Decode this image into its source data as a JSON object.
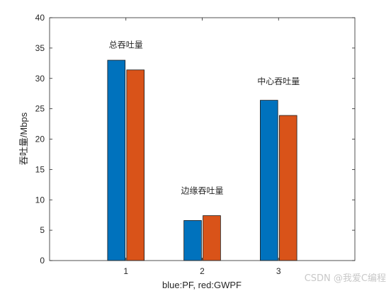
{
  "chart_data": {
    "type": "bar",
    "categories": [
      "1",
      "2",
      "3"
    ],
    "series": [
      {
        "values": [
          33.0,
          6.6,
          26.4
        ],
        "color": "#0072BD"
      },
      {
        "values": [
          31.4,
          7.4,
          23.9
        ],
        "color": "#D95319"
      }
    ],
    "xlabel": "blue:PF,  red:GWPF",
    "ylabel": "吞吐量/Mbps",
    "ylim": [
      0,
      40
    ],
    "yticks": [
      "0",
      "5",
      "10",
      "15",
      "20",
      "25",
      "30",
      "35",
      "40"
    ],
    "annotations": [
      {
        "text": "总吞吐量",
        "x": 1,
        "y": 35.5
      },
      {
        "text": "边缘吞吐量",
        "x": 2,
        "y": 11.5
      },
      {
        "text": "中心吞吐量",
        "x": 3,
        "y": 29.5
      }
    ],
    "grid": false,
    "legend": "none"
  },
  "watermark": "CSDN @我爱C编程"
}
